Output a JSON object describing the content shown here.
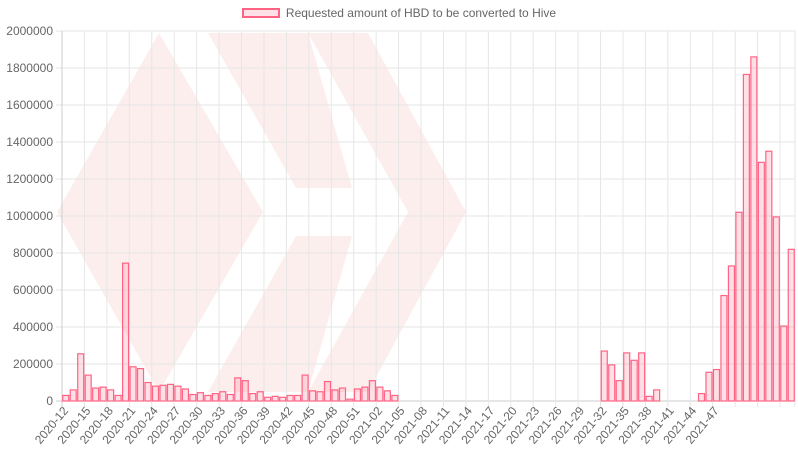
{
  "chart_data": {
    "type": "bar",
    "series": [
      {
        "name": "Requested amount of HBD to be converted to Hive",
        "color_border": "#ff6384",
        "color_fill": "rgba(255,99,132,0.2)",
        "values": [
          30000,
          60000,
          255000,
          140000,
          70000,
          75000,
          60000,
          30000,
          745000,
          185000,
          175000,
          100000,
          80000,
          85000,
          90000,
          80000,
          65000,
          35000,
          45000,
          30000,
          40000,
          50000,
          35000,
          125000,
          110000,
          40000,
          50000,
          20000,
          25000,
          20000,
          30000,
          30000,
          140000,
          55000,
          50000,
          105000,
          60000,
          70000,
          10000,
          65000,
          75000,
          110000,
          75000,
          55000,
          30000,
          0,
          0,
          0,
          0,
          0,
          0,
          0,
          0,
          0,
          0,
          0,
          0,
          0,
          0,
          0,
          0,
          0,
          0,
          0,
          0,
          0,
          0,
          0,
          0,
          0,
          0,
          0,
          270000,
          195000,
          110000,
          260000,
          220000,
          260000,
          25000,
          60000,
          0,
          0,
          0,
          0,
          0,
          40000,
          155000,
          170000,
          570000,
          730000,
          1020000,
          1765000,
          1860000,
          1290000,
          1350000,
          995000,
          405000,
          820000
        ]
      }
    ],
    "x_start_year": 2020,
    "x_start_week": 12,
    "x_label_every": 3,
    "ylim": [
      0,
      2000000
    ],
    "y_ticks": [
      0,
      200000,
      400000,
      600000,
      800000,
      1000000,
      1200000,
      1400000,
      1600000,
      1800000,
      2000000
    ],
    "x_ticks": [
      "2020-12",
      "2020-15",
      "2020-18",
      "2020-21",
      "2020-24",
      "2020-27",
      "2020-30",
      "2020-33",
      "2020-36",
      "2020-39",
      "2020-42",
      "2020-45",
      "2020-48",
      "2020-51",
      "2021-02",
      "2021-05",
      "2021-08",
      "2021-11",
      "2021-14",
      "2021-17",
      "2021-20",
      "2021-23",
      "2021-26",
      "2021-29",
      "2021-32",
      "2021-35",
      "2021-38",
      "2021-41",
      "2021-44",
      "2021-47"
    ],
    "grid": true,
    "legend": "top-center",
    "watermark_color": "#fdeeee"
  }
}
